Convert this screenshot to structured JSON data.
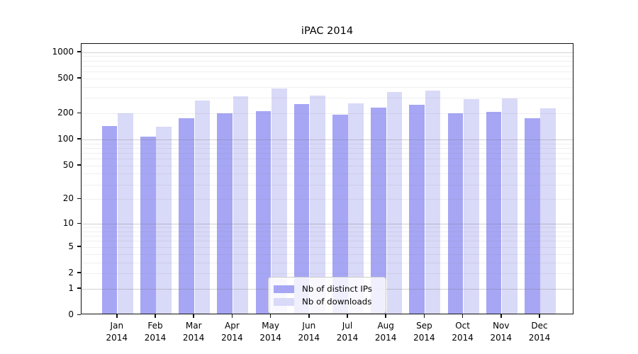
{
  "figure": {
    "title": "iPAC 2014"
  },
  "chart_data": {
    "type": "bar",
    "title": "iPAC 2014",
    "yscale": "log1p",
    "ylim": [
      0,
      1250
    ],
    "yticks": [
      0,
      1,
      2,
      5,
      10,
      20,
      50,
      100,
      200,
      500,
      1000
    ],
    "grid": "on",
    "legend_position": "lower center",
    "xlabel": "",
    "ylabel": "",
    "categories": [
      "Jan",
      "Feb",
      "Mar",
      "Apr",
      "May",
      "Jun",
      "Jul",
      "Aug",
      "Sep",
      "Oct",
      "Nov",
      "Dec"
    ],
    "year_label": "2014",
    "series": [
      {
        "name": "Nb of distinct IPs",
        "color": "#a6a6f5",
        "values": [
          138,
          104,
          170,
          194,
          205,
          244,
          185,
          223,
          240,
          193,
          200,
          168
        ]
      },
      {
        "name": "Nb of downloads",
        "color": "#d9d9f8",
        "values": [
          194,
          136,
          268,
          301,
          370,
          308,
          250,
          337,
          351,
          280,
          287,
          218
        ]
      }
    ]
  },
  "colors": {
    "axis": "#111111",
    "grid_major": "#b3b3b3",
    "grid_minor": "#e9e9e9",
    "background": "#ffffff"
  }
}
